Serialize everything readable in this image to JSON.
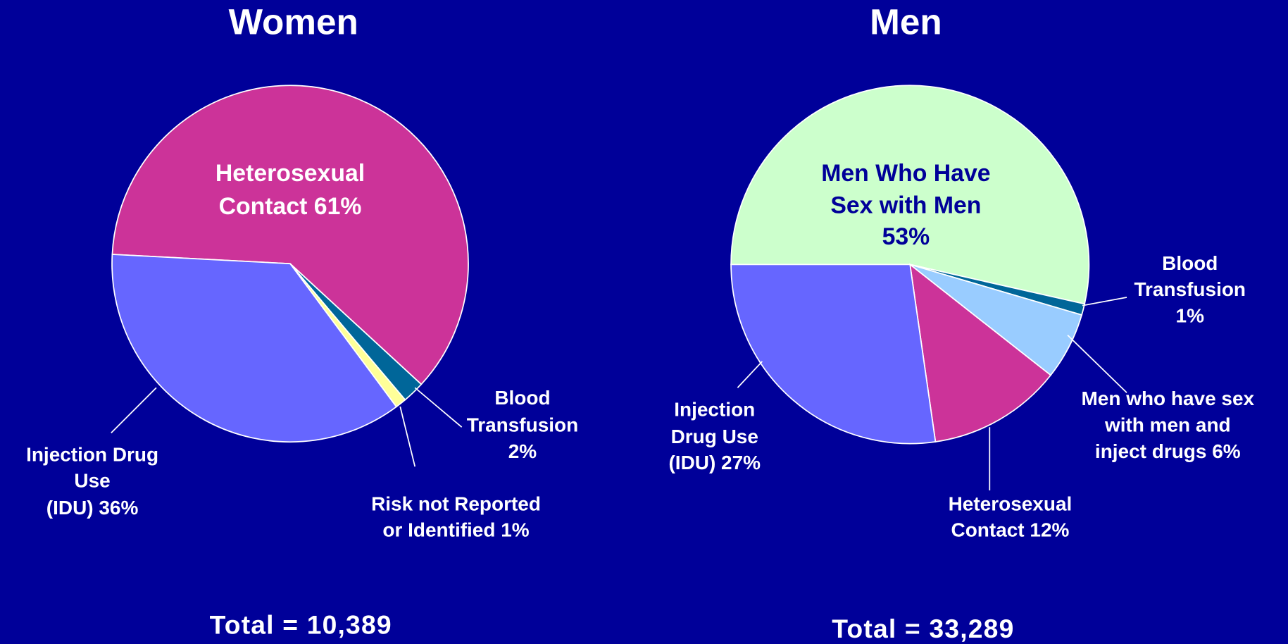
{
  "chart_data": [
    {
      "type": "pie",
      "title": "Women",
      "footer": "Total = 10,389",
      "values": [
        61,
        2,
        1,
        36
      ],
      "value_labels": [
        [
          "Heterosexual",
          "Contact 61%"
        ],
        [
          "Blood",
          "Transfusion",
          "2%"
        ],
        [
          "Risk not Reported",
          "or Identified 1%"
        ],
        [
          "Injection Drug",
          "Use",
          "(IDU) 36%"
        ]
      ],
      "colors": [
        "#cc3399",
        "#006699",
        "#ffff99",
        "#6666ff"
      ],
      "label_colors": [
        "#ffffff",
        "#ffffff",
        "#ffffff",
        "#ffffff"
      ]
    },
    {
      "type": "pie",
      "title": "Men",
      "footer": "Total = 33,289",
      "values": [
        53,
        1,
        6,
        12,
        27
      ],
      "value_labels": [
        [
          "Men Who Have",
          "Sex with Men",
          "53%"
        ],
        [
          "Blood",
          "Transfusion",
          "1%"
        ],
        [
          "Men who have sex",
          "with men and",
          "inject drugs 6%"
        ],
        [
          "Heterosexual",
          "Contact 12%"
        ],
        [
          "Injection",
          "Drug Use",
          "(IDU)  27%"
        ]
      ],
      "colors": [
        "#ccffcc",
        "#006699",
        "#99ccff",
        "#cc3399",
        "#6666ff"
      ],
      "label_colors": [
        "#000099",
        "#ffffff",
        "#ffffff",
        "#ffffff",
        "#ffffff"
      ]
    }
  ]
}
